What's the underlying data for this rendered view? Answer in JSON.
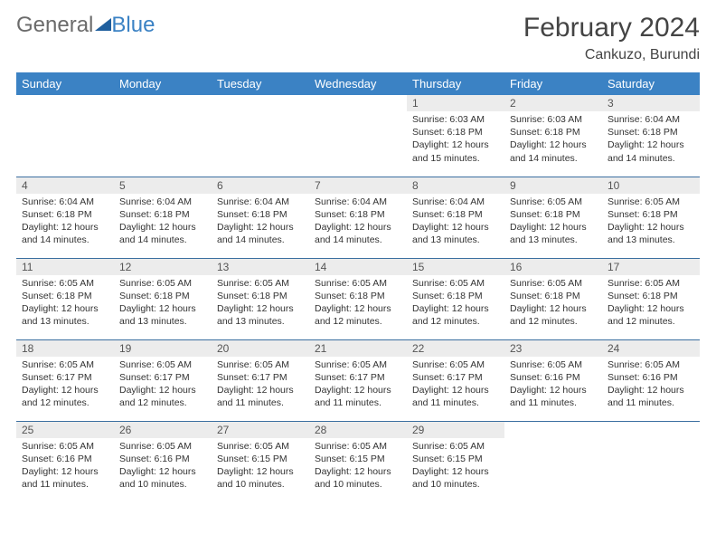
{
  "logo": {
    "part1": "General",
    "part2": "Blue"
  },
  "header": {
    "month_title": "February 2024",
    "location": "Cankuzo, Burundi"
  },
  "style": {
    "header_bg": "#3b82c4",
    "header_text": "#ffffff",
    "daynum_bg": "#ececec",
    "row_border": "#3b6fa0",
    "body_text": "#333333"
  },
  "day_headers": [
    "Sunday",
    "Monday",
    "Tuesday",
    "Wednesday",
    "Thursday",
    "Friday",
    "Saturday"
  ],
  "weeks": [
    [
      {
        "empty": true
      },
      {
        "empty": true
      },
      {
        "empty": true
      },
      {
        "empty": true
      },
      {
        "num": "1",
        "sunrise": "Sunrise: 6:03 AM",
        "sunset": "Sunset: 6:18 PM",
        "daylight": "Daylight: 12 hours and 15 minutes."
      },
      {
        "num": "2",
        "sunrise": "Sunrise: 6:03 AM",
        "sunset": "Sunset: 6:18 PM",
        "daylight": "Daylight: 12 hours and 14 minutes."
      },
      {
        "num": "3",
        "sunrise": "Sunrise: 6:04 AM",
        "sunset": "Sunset: 6:18 PM",
        "daylight": "Daylight: 12 hours and 14 minutes."
      }
    ],
    [
      {
        "num": "4",
        "sunrise": "Sunrise: 6:04 AM",
        "sunset": "Sunset: 6:18 PM",
        "daylight": "Daylight: 12 hours and 14 minutes."
      },
      {
        "num": "5",
        "sunrise": "Sunrise: 6:04 AM",
        "sunset": "Sunset: 6:18 PM",
        "daylight": "Daylight: 12 hours and 14 minutes."
      },
      {
        "num": "6",
        "sunrise": "Sunrise: 6:04 AM",
        "sunset": "Sunset: 6:18 PM",
        "daylight": "Daylight: 12 hours and 14 minutes."
      },
      {
        "num": "7",
        "sunrise": "Sunrise: 6:04 AM",
        "sunset": "Sunset: 6:18 PM",
        "daylight": "Daylight: 12 hours and 14 minutes."
      },
      {
        "num": "8",
        "sunrise": "Sunrise: 6:04 AM",
        "sunset": "Sunset: 6:18 PM",
        "daylight": "Daylight: 12 hours and 13 minutes."
      },
      {
        "num": "9",
        "sunrise": "Sunrise: 6:05 AM",
        "sunset": "Sunset: 6:18 PM",
        "daylight": "Daylight: 12 hours and 13 minutes."
      },
      {
        "num": "10",
        "sunrise": "Sunrise: 6:05 AM",
        "sunset": "Sunset: 6:18 PM",
        "daylight": "Daylight: 12 hours and 13 minutes."
      }
    ],
    [
      {
        "num": "11",
        "sunrise": "Sunrise: 6:05 AM",
        "sunset": "Sunset: 6:18 PM",
        "daylight": "Daylight: 12 hours and 13 minutes."
      },
      {
        "num": "12",
        "sunrise": "Sunrise: 6:05 AM",
        "sunset": "Sunset: 6:18 PM",
        "daylight": "Daylight: 12 hours and 13 minutes."
      },
      {
        "num": "13",
        "sunrise": "Sunrise: 6:05 AM",
        "sunset": "Sunset: 6:18 PM",
        "daylight": "Daylight: 12 hours and 13 minutes."
      },
      {
        "num": "14",
        "sunrise": "Sunrise: 6:05 AM",
        "sunset": "Sunset: 6:18 PM",
        "daylight": "Daylight: 12 hours and 12 minutes."
      },
      {
        "num": "15",
        "sunrise": "Sunrise: 6:05 AM",
        "sunset": "Sunset: 6:18 PM",
        "daylight": "Daylight: 12 hours and 12 minutes."
      },
      {
        "num": "16",
        "sunrise": "Sunrise: 6:05 AM",
        "sunset": "Sunset: 6:18 PM",
        "daylight": "Daylight: 12 hours and 12 minutes."
      },
      {
        "num": "17",
        "sunrise": "Sunrise: 6:05 AM",
        "sunset": "Sunset: 6:18 PM",
        "daylight": "Daylight: 12 hours and 12 minutes."
      }
    ],
    [
      {
        "num": "18",
        "sunrise": "Sunrise: 6:05 AM",
        "sunset": "Sunset: 6:17 PM",
        "daylight": "Daylight: 12 hours and 12 minutes."
      },
      {
        "num": "19",
        "sunrise": "Sunrise: 6:05 AM",
        "sunset": "Sunset: 6:17 PM",
        "daylight": "Daylight: 12 hours and 12 minutes."
      },
      {
        "num": "20",
        "sunrise": "Sunrise: 6:05 AM",
        "sunset": "Sunset: 6:17 PM",
        "daylight": "Daylight: 12 hours and 11 minutes."
      },
      {
        "num": "21",
        "sunrise": "Sunrise: 6:05 AM",
        "sunset": "Sunset: 6:17 PM",
        "daylight": "Daylight: 12 hours and 11 minutes."
      },
      {
        "num": "22",
        "sunrise": "Sunrise: 6:05 AM",
        "sunset": "Sunset: 6:17 PM",
        "daylight": "Daylight: 12 hours and 11 minutes."
      },
      {
        "num": "23",
        "sunrise": "Sunrise: 6:05 AM",
        "sunset": "Sunset: 6:16 PM",
        "daylight": "Daylight: 12 hours and 11 minutes."
      },
      {
        "num": "24",
        "sunrise": "Sunrise: 6:05 AM",
        "sunset": "Sunset: 6:16 PM",
        "daylight": "Daylight: 12 hours and 11 minutes."
      }
    ],
    [
      {
        "num": "25",
        "sunrise": "Sunrise: 6:05 AM",
        "sunset": "Sunset: 6:16 PM",
        "daylight": "Daylight: 12 hours and 11 minutes."
      },
      {
        "num": "26",
        "sunrise": "Sunrise: 6:05 AM",
        "sunset": "Sunset: 6:16 PM",
        "daylight": "Daylight: 12 hours and 10 minutes."
      },
      {
        "num": "27",
        "sunrise": "Sunrise: 6:05 AM",
        "sunset": "Sunset: 6:15 PM",
        "daylight": "Daylight: 12 hours and 10 minutes."
      },
      {
        "num": "28",
        "sunrise": "Sunrise: 6:05 AM",
        "sunset": "Sunset: 6:15 PM",
        "daylight": "Daylight: 12 hours and 10 minutes."
      },
      {
        "num": "29",
        "sunrise": "Sunrise: 6:05 AM",
        "sunset": "Sunset: 6:15 PM",
        "daylight": "Daylight: 12 hours and 10 minutes."
      },
      {
        "empty": true
      },
      {
        "empty": true
      }
    ]
  ]
}
